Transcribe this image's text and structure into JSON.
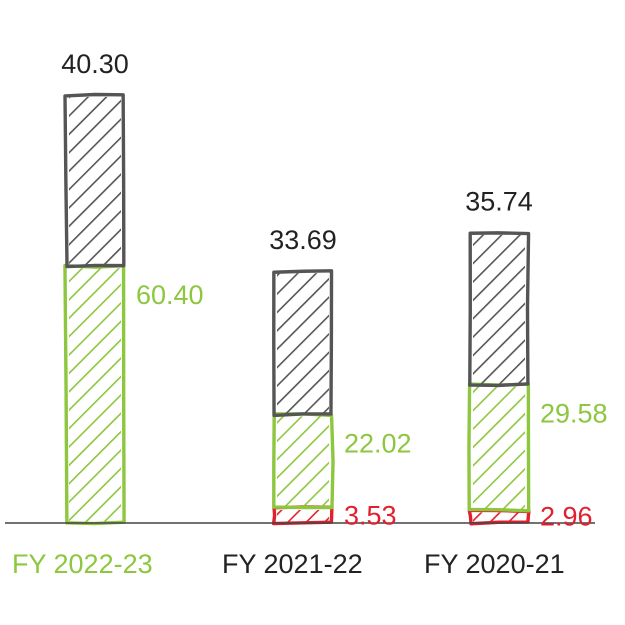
{
  "chart_data": {
    "type": "bar",
    "stacked": true,
    "style": "hand-drawn hatched",
    "categories": [
      "FY 2022-23",
      "FY 2021-22",
      "FY 2020-21"
    ],
    "category_colors": [
      "#8dc63f",
      "#222222",
      "#222222"
    ],
    "series": [
      {
        "values": [
          0,
          3.53,
          2.96
        ],
        "color": "#e0202e"
      },
      {
        "values": [
          60.4,
          22.02,
          29.58
        ],
        "color": "#8dc63f"
      },
      {
        "values": [
          40.3,
          33.69,
          35.74
        ],
        "color": "#555555",
        "label_color": "#222222"
      }
    ],
    "ylim": [
      0,
      100
    ],
    "grid": false,
    "legend": "none"
  }
}
